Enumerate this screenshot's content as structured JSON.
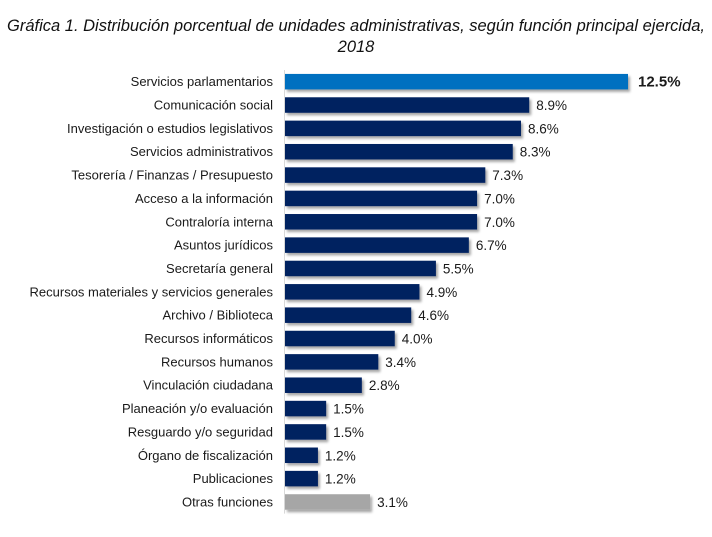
{
  "chart_data": {
    "type": "bar",
    "orientation": "horizontal",
    "title": "Gráfica 1. Distribución porcentual de unidades administrativas, según función principal ejercida, 2018",
    "title_lines": [
      "Gráfica 1. Distribución porcentual de unidades administrativas, según función principal ejercida,",
      "2018"
    ],
    "xlabel": "",
    "ylabel": "",
    "unit": "%",
    "grid": false,
    "legend": "none",
    "xlim": [
      0,
      12.5
    ],
    "categories": [
      "Servicios parlamentarios",
      "Comunicación social",
      "Investigación o estudios legislativos",
      "Servicios administrativos",
      "Tesorería / Finanzas / Presupuesto",
      "Acceso a la información",
      "Contraloría interna",
      "Asuntos jurídicos",
      "Secretaría general",
      "Recursos materiales y servicios generales",
      "Archivo / Biblioteca",
      "Recursos informáticos",
      "Recursos humanos",
      "Vinculación ciudadana",
      "Planeación y/o evaluación",
      "Resguardo y/o seguridad",
      "Órgano de fiscalización",
      "Publicaciones",
      "Otras funciones"
    ],
    "values": [
      12.5,
      8.9,
      8.6,
      8.3,
      7.3,
      7.0,
      7.0,
      6.7,
      5.5,
      4.9,
      4.6,
      4.0,
      3.4,
      2.8,
      1.5,
      1.5,
      1.2,
      1.2,
      3.1
    ],
    "value_labels": [
      "12.5%",
      "8.9%",
      "8.6%",
      "8.3%",
      "7.3%",
      "7.0%",
      "7.0%",
      "6.7%",
      "5.5%",
      "4.9%",
      "4.6%",
      "4.0%",
      "3.4%",
      "2.8%",
      "1.5%",
      "1.5%",
      "1.2%",
      "1.2%",
      "3.1%"
    ],
    "bar_roles": [
      "highlight",
      "default",
      "default",
      "default",
      "default",
      "default",
      "default",
      "default",
      "default",
      "default",
      "default",
      "default",
      "default",
      "default",
      "default",
      "default",
      "default",
      "default",
      "other"
    ],
    "colors": {
      "highlight": "#0070c0",
      "default": "#002060",
      "other": "#a6a6a6",
      "axis": "#d9d9d9"
    }
  }
}
